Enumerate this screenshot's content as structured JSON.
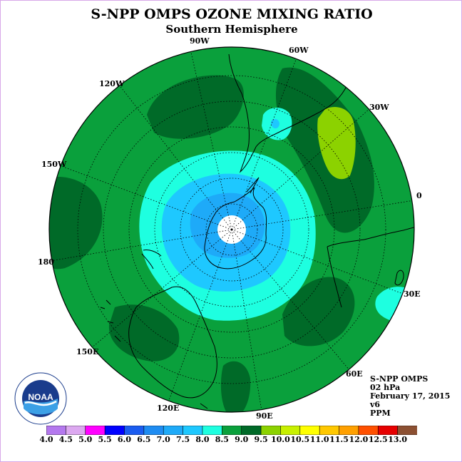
{
  "title": "S-NPP OMPS OZONE MIXING RATIO",
  "subtitle": "Southern Hemisphere",
  "longitude_labels": {
    "lon_90w": "90W",
    "lon_60w": "60W",
    "lon_30w": "30W",
    "lon_120w": "120W",
    "lon_150w": "150W",
    "lon_0": "0",
    "lon_180": "180",
    "lon_30e": "30E",
    "lon_60e": "60E",
    "lon_90e": "90E",
    "lon_120e": "120E",
    "lon_150e": "150E"
  },
  "info": {
    "instrument": "S-NPP OMPS",
    "level": "02 hPa",
    "date": "February 17, 2015",
    "version": "v6",
    "units": "PPM"
  },
  "logo": {
    "text": "NOAA"
  },
  "colorbar": {
    "ticks": [
      "4.0",
      "4.5",
      "5.0",
      "5.5",
      "6.0",
      "6.5",
      "7.0",
      "7.5",
      "8.0",
      "8.5",
      "9.0",
      "9.5",
      "10.0",
      "10.5",
      "11.0",
      "11.5",
      "12.0",
      "12.5",
      "13.0"
    ],
    "colors": [
      "#b478ee",
      "#dca8f0",
      "#ff00ff",
      "#0000ff",
      "#1a5cf0",
      "#1e8cf2",
      "#1eaaf8",
      "#1ec8ff",
      "#1effe0",
      "#0aa03c",
      "#006a28",
      "#8cd200",
      "#c8f000",
      "#ffff00",
      "#ffc800",
      "#ffa000",
      "#ff5000",
      "#e60000",
      "#8c5032"
    ]
  },
  "legend_colors": {
    "c_7_0": "#1eaaf8",
    "c_7_5": "#1ec8ff",
    "c_8_0": "#1effe0",
    "c_8_5": "#0aa03c",
    "c_9_0": "#006a28",
    "c_9_5": "#8cd200",
    "c_6_5": "#1e8cf2"
  }
}
